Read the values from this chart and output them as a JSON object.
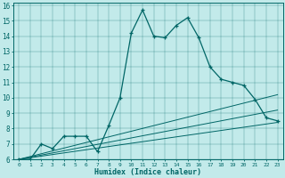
{
  "xlabel": "Humidex (Indice chaleur)",
  "bg_color": "#c2eaea",
  "line_color": "#006666",
  "xlim": [
    -0.5,
    23.5
  ],
  "ylim": [
    6,
    16.2
  ],
  "xticks": [
    0,
    1,
    2,
    3,
    4,
    5,
    6,
    7,
    8,
    9,
    10,
    11,
    12,
    13,
    14,
    15,
    16,
    17,
    18,
    19,
    20,
    21,
    22,
    23
  ],
  "yticks": [
    6,
    7,
    8,
    9,
    10,
    11,
    12,
    13,
    14,
    15,
    16
  ],
  "main_x": [
    0,
    1,
    2,
    3,
    4,
    5,
    6,
    7,
    8,
    9,
    10,
    11,
    12,
    13,
    14,
    15,
    16,
    17,
    18,
    19,
    20,
    21,
    22,
    23
  ],
  "main_y": [
    6.0,
    6.0,
    7.0,
    6.7,
    7.5,
    7.5,
    7.5,
    6.5,
    8.2,
    10.0,
    14.2,
    15.7,
    14.0,
    13.9,
    14.7,
    15.2,
    13.9,
    12.0,
    11.2,
    11.0,
    10.8,
    9.9,
    8.7,
    8.5
  ],
  "linear_lines": [
    {
      "x": [
        0,
        23
      ],
      "y": [
        6.0,
        8.4
      ]
    },
    {
      "x": [
        0,
        23
      ],
      "y": [
        6.0,
        9.2
      ]
    },
    {
      "x": [
        0,
        23
      ],
      "y": [
        6.0,
        10.2
      ]
    }
  ]
}
